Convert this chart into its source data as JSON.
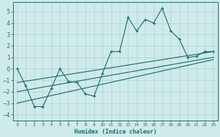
{
  "xlabel": "Humidex (Indice chaleur)",
  "bg_color": "#ceeaea",
  "line_color": "#1a6b6b",
  "grid_color": "#aed0d0",
  "xlim": [
    -0.5,
    23.5
  ],
  "ylim": [
    -4.5,
    5.8
  ],
  "yticks": [
    -4,
    -3,
    -2,
    -1,
    0,
    1,
    2,
    3,
    4,
    5
  ],
  "xticks": [
    0,
    1,
    2,
    3,
    4,
    5,
    6,
    7,
    8,
    9,
    10,
    11,
    12,
    13,
    14,
    15,
    16,
    17,
    18,
    19,
    20,
    21,
    22,
    23
  ],
  "main_x": [
    0,
    1,
    2,
    3,
    4,
    5,
    6,
    7,
    8,
    9,
    10,
    11,
    12,
    13,
    14,
    15,
    16,
    17,
    18,
    19,
    20,
    21,
    22,
    23
  ],
  "main_y": [
    0.0,
    -1.5,
    -3.3,
    -3.3,
    -1.7,
    0.0,
    -1.1,
    -1.2,
    -2.2,
    -2.4,
    -0.4,
    1.5,
    1.5,
    4.5,
    3.3,
    4.3,
    4.0,
    5.3,
    3.3,
    2.6,
    1.0,
    1.1,
    1.5,
    1.5
  ],
  "trend1_x": [
    0,
    23
  ],
  "trend1_y": [
    -1.2,
    1.5
  ],
  "trend2_x": [
    0,
    23
  ],
  "trend2_y": [
    -2.0,
    1.0
  ],
  "trend3_x": [
    0,
    23
  ],
  "trend3_y": [
    -3.0,
    0.8
  ],
  "marker": "+"
}
